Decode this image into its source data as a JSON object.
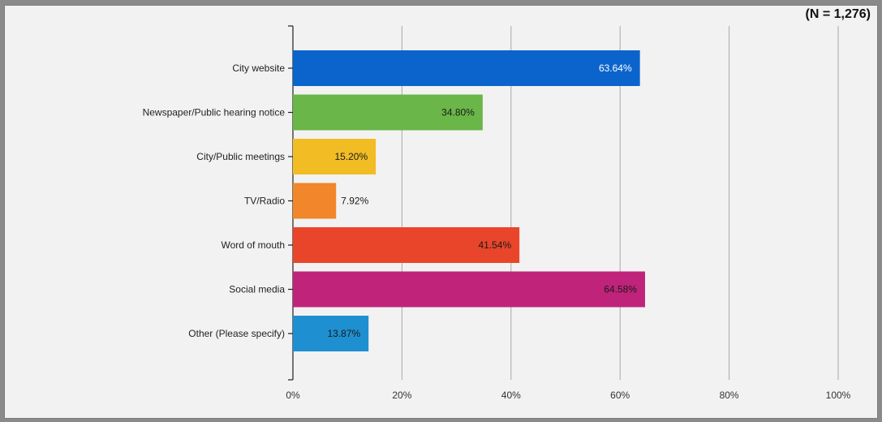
{
  "header": {
    "n_label": "(N = 1,276)"
  },
  "chart_data": {
    "type": "bar",
    "orientation": "horizontal",
    "categories": [
      "City website",
      "Newspaper/Public hearing notice",
      "City/Public meetings",
      "TV/Radio",
      "Word of mouth",
      "Social media",
      "Other (Please specify)"
    ],
    "values": [
      63.64,
      34.8,
      15.2,
      7.92,
      41.54,
      64.58,
      13.87
    ],
    "labels": [
      "63.64%",
      "34.80%",
      "15.20%",
      "7.92%",
      "41.54%",
      "64.58%",
      "13.87%"
    ],
    "colors": [
      "#0a64cc",
      "#6ab648",
      "#f2bc24",
      "#f2862a",
      "#e8452a",
      "#c0237a",
      "#1e8fd0"
    ],
    "label_colors": [
      "#ffffff",
      "#1a1a1a",
      "#1a1a1a",
      "#1a1a1a",
      "#1a1a1a",
      "#1a1a1a",
      "#1a1a1a"
    ],
    "xlim": [
      0,
      100
    ],
    "xticks": [
      0,
      20,
      40,
      60,
      80,
      100
    ],
    "xtick_labels": [
      "0%",
      "20%",
      "40%",
      "60%",
      "80%",
      "100%"
    ],
    "grid": true,
    "legend": "none"
  }
}
